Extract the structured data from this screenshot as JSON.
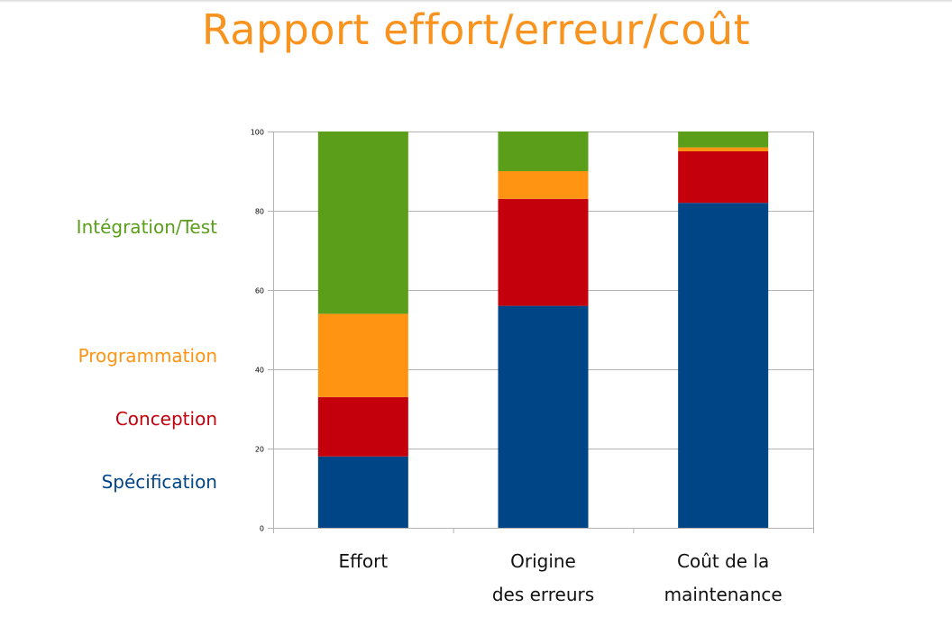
{
  "title": "Rapport effort/erreur/coût",
  "legend": [
    {
      "label": "Intégration/Test",
      "color": "#5a9e1a"
    },
    {
      "label": "Programmation",
      "color": "#ff9412"
    },
    {
      "label": "Conception",
      "color": "#c4000d"
    },
    {
      "label": "Spécification",
      "color": "#004586"
    }
  ],
  "chart_data": {
    "type": "bar",
    "stacked": true,
    "categories": [
      [
        "Effort"
      ],
      [
        "Origine",
        "des erreurs"
      ],
      [
        "Coût de la",
        "maintenance"
      ]
    ],
    "series": [
      {
        "name": "Spécification",
        "color": "#004586",
        "values": [
          18,
          56,
          82
        ]
      },
      {
        "name": "Conception",
        "color": "#c4000d",
        "values": [
          15,
          27,
          13
        ]
      },
      {
        "name": "Programmation",
        "color": "#ff9412",
        "values": [
          21,
          7,
          1
        ]
      },
      {
        "name": "Intégration/Test",
        "color": "#5a9e1a",
        "values": [
          46,
          10,
          4
        ]
      }
    ],
    "ylim": [
      0,
      100
    ],
    "yticks": [
      0,
      20,
      40,
      60,
      80,
      100
    ],
    "grid": true,
    "legend_position": "left"
  }
}
